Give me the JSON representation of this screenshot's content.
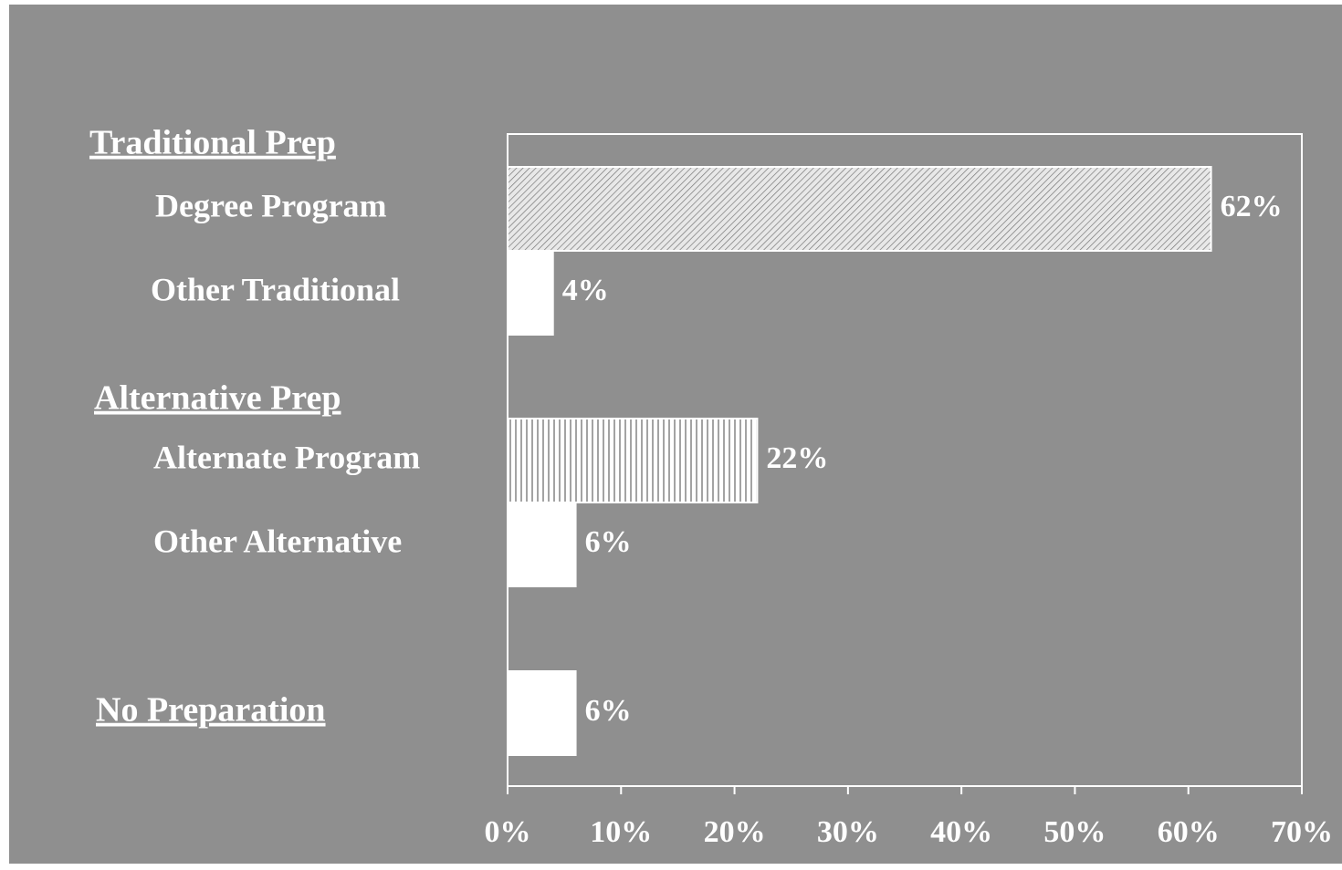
{
  "chart_data": {
    "type": "bar",
    "orientation": "horizontal",
    "groups": [
      "Traditional Prep",
      "Alternative Prep"
    ],
    "categories": [
      "Degree Program",
      "Other Traditional",
      "Alternate Program",
      "Other Alternative",
      "No Preparation"
    ],
    "values": [
      62,
      4,
      22,
      6,
      6
    ],
    "value_labels": [
      "62%",
      "4%",
      "22%",
      "6%",
      "6%"
    ],
    "bar_fills": [
      "diagonal-hatch",
      "solid",
      "vertical-hatch",
      "solid",
      "solid"
    ],
    "color": "#ffffff",
    "xlim": [
      0,
      70
    ],
    "xticks": [
      {
        "value": 0,
        "label": "0%"
      },
      {
        "value": 10,
        "label": "10%"
      },
      {
        "value": 20,
        "label": "20%"
      },
      {
        "value": 30,
        "label": "30%"
      },
      {
        "value": 40,
        "label": "40%"
      },
      {
        "value": 50,
        "label": "50%"
      },
      {
        "value": 60,
        "label": "60%"
      },
      {
        "value": 70,
        "label": "70%"
      }
    ],
    "grid": false
  }
}
